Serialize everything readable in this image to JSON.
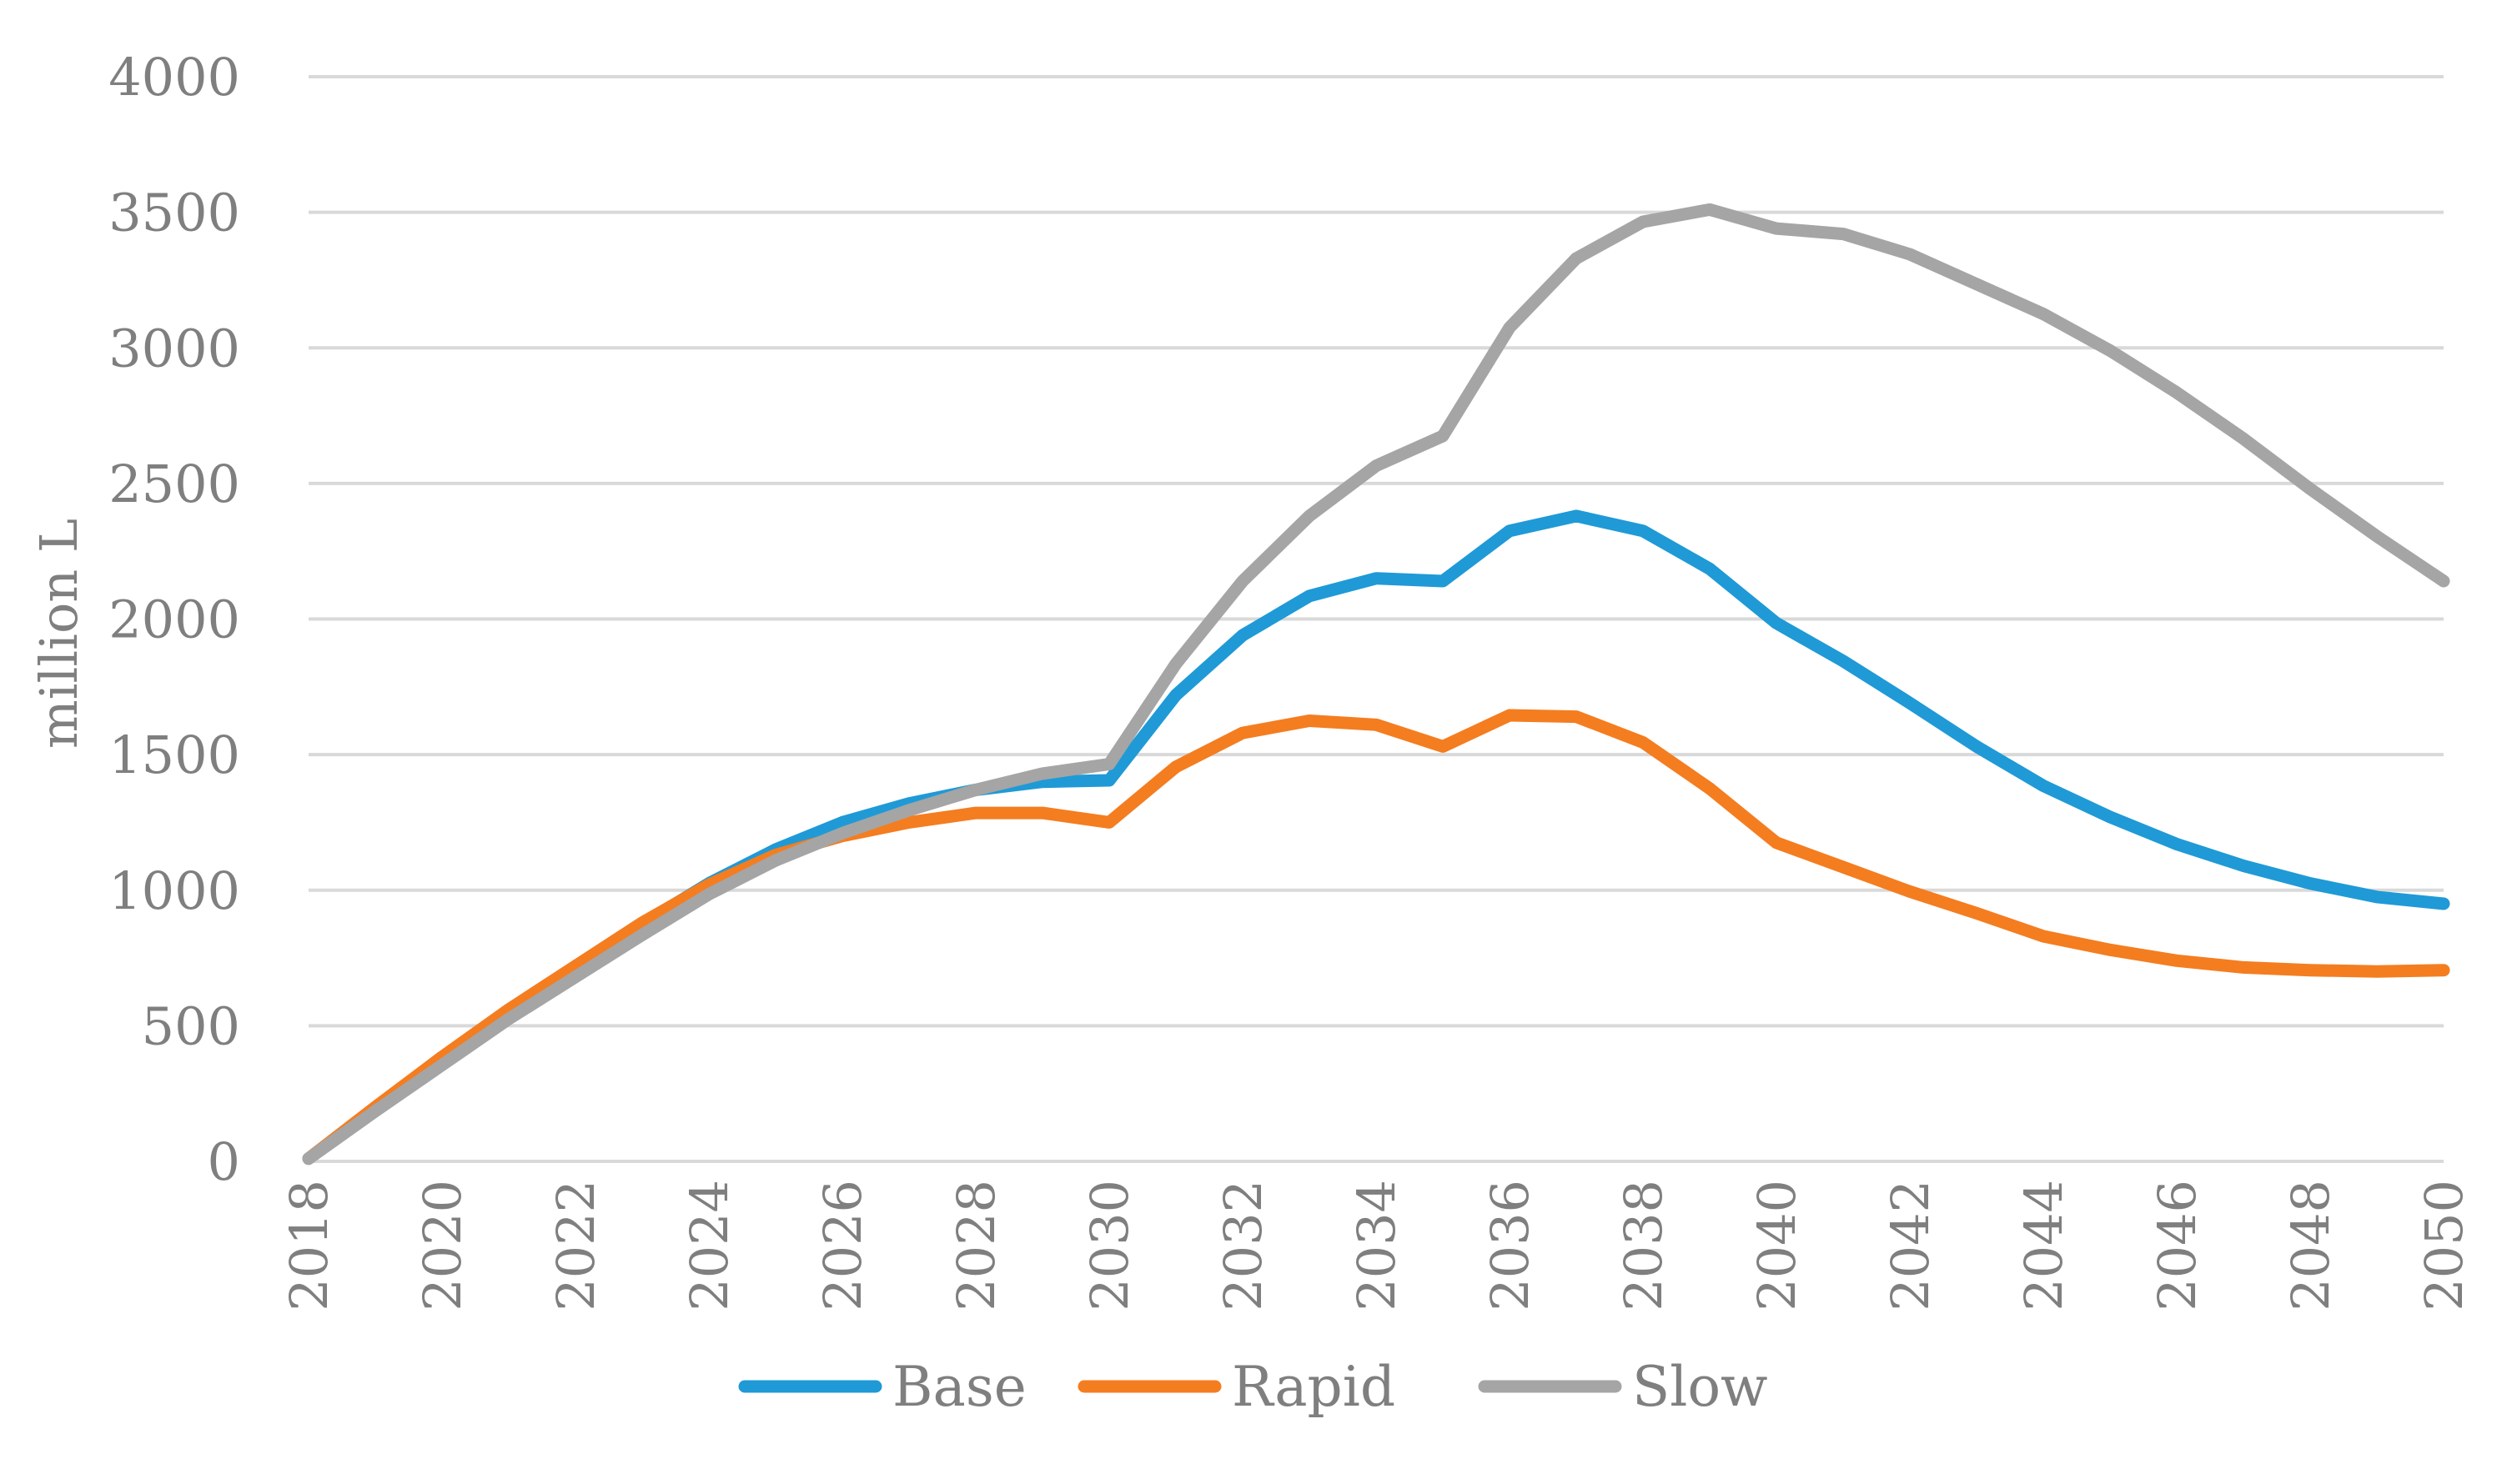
{
  "chart_data": {
    "type": "line",
    "title": "",
    "xlabel": "",
    "ylabel": "million L",
    "ylim": [
      0,
      4000
    ],
    "yticks": [
      0,
      500,
      1000,
      1500,
      2000,
      2500,
      3000,
      3500,
      4000
    ],
    "x": [
      2018,
      2019,
      2020,
      2021,
      2022,
      2023,
      2024,
      2025,
      2026,
      2027,
      2028,
      2029,
      2030,
      2031,
      2032,
      2033,
      2034,
      2035,
      2036,
      2037,
      2038,
      2039,
      2040,
      2041,
      2042,
      2043,
      2044,
      2045,
      2046,
      2047,
      2048,
      2049,
      2050
    ],
    "xtick_labels": [
      2018,
      2020,
      2022,
      2024,
      2026,
      2028,
      2030,
      2032,
      2034,
      2036,
      2038,
      2040,
      2042,
      2044,
      2046,
      2048,
      2050
    ],
    "grid": true,
    "legend_position": "bottom",
    "series": [
      {
        "name": "Base",
        "color": "#1f9ad6",
        "values": [
          10,
          195,
          370,
          550,
          715,
          875,
          1025,
          1150,
          1250,
          1320,
          1370,
          1400,
          1405,
          1720,
          1940,
          2085,
          2150,
          2140,
          2325,
          2380,
          2325,
          2185,
          1985,
          1845,
          1690,
          1530,
          1385,
          1270,
          1170,
          1090,
          1025,
          975,
          950
        ]
      },
      {
        "name": "Rapid",
        "color": "#f47d20",
        "values": [
          10,
          200,
          385,
          560,
          720,
          880,
          1020,
          1130,
          1200,
          1250,
          1285,
          1285,
          1250,
          1455,
          1580,
          1625,
          1610,
          1530,
          1645,
          1640,
          1545,
          1375,
          1175,
          1085,
          995,
          915,
          830,
          780,
          740,
          715,
          705,
          700,
          705
        ]
      },
      {
        "name": "Slow",
        "color": "#a5a5a5",
        "values": [
          10,
          185,
          355,
          525,
          680,
          835,
          985,
          1110,
          1210,
          1295,
          1370,
          1430,
          1465,
          1835,
          2140,
          2380,
          2565,
          2675,
          3075,
          3330,
          3465,
          3510,
          3440,
          3420,
          3345,
          3235,
          3125,
          2990,
          2835,
          2665,
          2480,
          2305,
          2140
        ]
      }
    ]
  }
}
